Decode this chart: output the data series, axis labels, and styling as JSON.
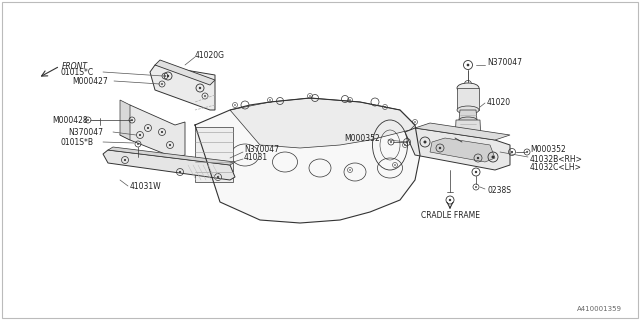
{
  "bg_color": "#ffffff",
  "border_color": "#bbbbbb",
  "line_color": "#333333",
  "text_color": "#222222",
  "leader_color": "#555555",
  "fig_width": 6.4,
  "fig_height": 3.2,
  "dpi": 100,
  "watermark": "A410001359",
  "labels": {
    "front": "FRONT",
    "cradle_frame": "CRADLE FRAME",
    "p41020G": "41020G",
    "p41020": "41020",
    "p41031": "41031",
    "p41031W": "41031W",
    "p41032B": "41032B<RH>",
    "p41032C": "41032C<LH>",
    "p0101SC": "0101S*C",
    "p0101SB": "0101S*B",
    "pM000427": "M000427",
    "pM000428": "M000428",
    "pM000352a": "M000352",
    "pM000352b": "M000352",
    "pN370047a": "N370047",
    "pN370047b": "N370047",
    "pN370047c": "N370047",
    "p0238S": "0238S"
  }
}
